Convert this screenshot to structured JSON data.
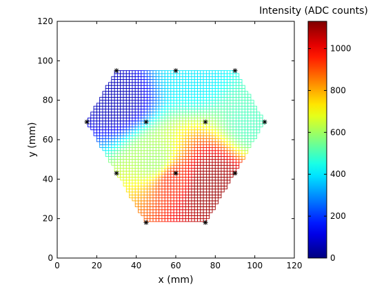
{
  "chart_data": {
    "type": "heatmap",
    "subtype": "hexagonal detector intensity map with cell grid, jet colormap",
    "xlabel": "x (mm)",
    "ylabel": "y (mm)",
    "xlim": [
      0,
      120
    ],
    "ylim": [
      0,
      120
    ],
    "xticks": [
      "0",
      "20",
      "40",
      "60",
      "80",
      "100",
      "120"
    ],
    "yticks": [
      "0",
      "20",
      "40",
      "60",
      "80",
      "100",
      "120"
    ],
    "grid": false,
    "colormap": "jet",
    "colorbar": {
      "label": "Intensity (ADC counts)",
      "range": [
        0,
        1130
      ],
      "ticks": [
        "0",
        "200",
        "400",
        "600",
        "800",
        "1000"
      ]
    },
    "hexagon_vertices": [
      [
        30,
        95
      ],
      [
        90,
        95
      ],
      [
        105,
        69
      ],
      [
        75,
        18
      ],
      [
        45,
        18
      ],
      [
        15,
        69
      ]
    ],
    "cell_size": 1.5,
    "intensity_field": {
      "peak": {
        "x": 78,
        "y": 38,
        "value": 1100
      },
      "falloff": "decreases toward upper-left",
      "approx_values": [
        {
          "x": 30,
          "y": 80,
          "value": 60
        },
        {
          "x": 50,
          "y": 50,
          "value": 600
        },
        {
          "x": 60,
          "y": 40,
          "value": 950
        },
        {
          "x": 75,
          "y": 35,
          "value": 1100
        },
        {
          "x": 70,
          "y": 95,
          "value": 400
        },
        {
          "x": 100,
          "y": 70,
          "value": 500
        }
      ]
    },
    "markers": {
      "symbol": "*",
      "points": [
        [
          30,
          95
        ],
        [
          60,
          95
        ],
        [
          90,
          95
        ],
        [
          15,
          69
        ],
        [
          45,
          69
        ],
        [
          75,
          69
        ],
        [
          105,
          69
        ],
        [
          30,
          43
        ],
        [
          60,
          43
        ],
        [
          90,
          43
        ],
        [
          45,
          18
        ],
        [
          75,
          18
        ]
      ]
    }
  }
}
